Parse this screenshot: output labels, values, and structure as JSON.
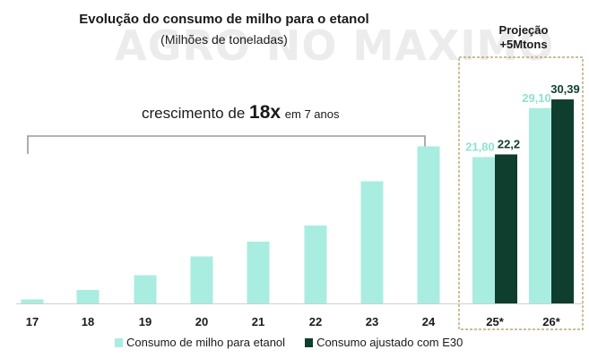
{
  "watermark": "AGRO NO MAXIMO",
  "projection": {
    "line1": "Projeção",
    "line2": "+5Mtons"
  },
  "annotation": {
    "prefix": "crescimento de",
    "highlight": "18x",
    "suffix": "em 7 anos"
  },
  "colors": {
    "light": "#a9ede0",
    "dark": "#0f3d2e",
    "bracket": "#9a9a9a",
    "projection_border": "#b0945a"
  },
  "chart_data": {
    "type": "bar",
    "title": "Evolução do consumo de milho para o etanol",
    "subtitle": "(Milhões de toneladas)",
    "categories": [
      "17",
      "18",
      "19",
      "20",
      "21",
      "22",
      "23",
      "24",
      "25*",
      "26*"
    ],
    "series": [
      {
        "name": "Consumo de milho para etanol",
        "color": "#a9ede0",
        "values": [
          0.6,
          2.0,
          4.2,
          7.0,
          9.2,
          11.6,
          18.2,
          23.4,
          21.8,
          29.1
        ]
      },
      {
        "name": "Consumo ajustado com E30",
        "color": "#0f3d2e",
        "values": [
          null,
          null,
          null,
          null,
          null,
          null,
          null,
          null,
          22.2,
          30.39
        ]
      }
    ],
    "data_labels": [
      {
        "category": "25*",
        "series": 0,
        "text": "21,80"
      },
      {
        "category": "25*",
        "series": 1,
        "text": "22,2"
      },
      {
        "category": "26*",
        "series": 0,
        "text": "29,10"
      },
      {
        "category": "26*",
        "series": 1,
        "text": "30,39"
      }
    ],
    "ylim": [
      0,
      32
    ],
    "grid": false,
    "legend_position": "bottom"
  }
}
